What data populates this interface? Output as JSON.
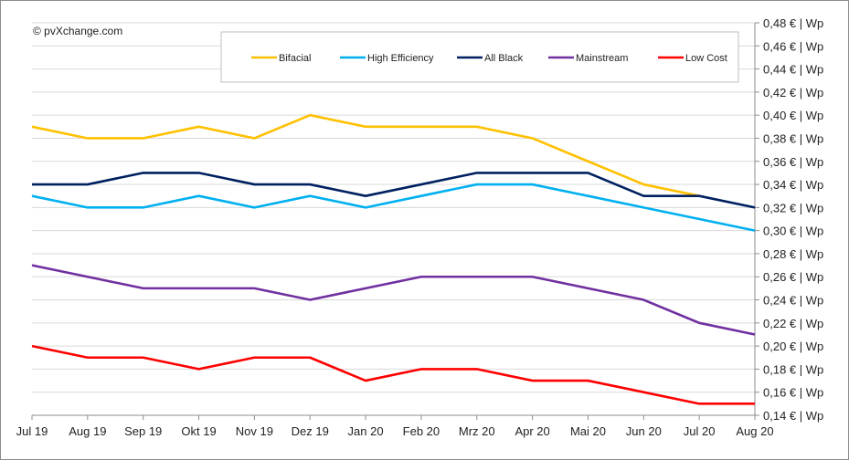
{
  "chart_data": {
    "type": "line",
    "copyright": "© pvXchange.com",
    "categories": [
      "Jul 19",
      "Aug 19",
      "Sep 19",
      "Okt 19",
      "Nov 19",
      "Dez 19",
      "Jan 20",
      "Feb 20",
      "Mrz 20",
      "Apr 20",
      "Mai 20",
      "Jun 20",
      "Jul 20",
      "Aug 20"
    ],
    "y_tick_labels": [
      "0,14 € | Wp",
      "0,16 € | Wp",
      "0,18 € | Wp",
      "0,20 € | Wp",
      "0,22 € | Wp",
      "0,24 € | Wp",
      "0,26 € | Wp",
      "0,28 € | Wp",
      "0,30 € | Wp",
      "0,32 € | Wp",
      "0,34 € | Wp",
      "0,36 € | Wp",
      "0,38 € | Wp",
      "0,40 € | Wp",
      "0,42 € | Wp",
      "0,44 € | Wp",
      "0,46 € | Wp",
      "0,48 € | Wp"
    ],
    "ylim": [
      0.14,
      0.48
    ],
    "y_step": 0.02,
    "grid": true,
    "legend_position": "top-right",
    "series": [
      {
        "name": "Bifacial",
        "color": "#FFC000",
        "values": [
          0.39,
          0.38,
          0.38,
          0.39,
          0.38,
          0.4,
          0.39,
          0.39,
          0.39,
          0.38,
          0.36,
          0.34,
          0.33,
          null
        ]
      },
      {
        "name": "High Efficiency",
        "color": "#00B0F0",
        "values": [
          0.33,
          0.32,
          0.32,
          0.33,
          0.32,
          0.33,
          0.32,
          0.33,
          0.34,
          0.34,
          0.33,
          0.32,
          0.31,
          0.3
        ]
      },
      {
        "name": "All Black",
        "color": "#002060",
        "values": [
          0.34,
          0.34,
          0.35,
          0.35,
          0.34,
          0.34,
          0.33,
          0.34,
          0.35,
          0.35,
          0.35,
          0.33,
          0.33,
          0.32
        ]
      },
      {
        "name": "Mainstream",
        "color": "#7030A0",
        "values": [
          0.27,
          0.26,
          0.25,
          0.25,
          0.25,
          0.24,
          0.25,
          0.26,
          0.26,
          0.26,
          0.25,
          0.24,
          0.22,
          0.21
        ]
      },
      {
        "name": "Low Cost",
        "color": "#FF0000",
        "values": [
          0.2,
          0.19,
          0.19,
          0.18,
          0.19,
          0.19,
          0.17,
          0.18,
          0.18,
          0.17,
          0.17,
          0.16,
          0.15,
          0.15
        ]
      }
    ]
  }
}
